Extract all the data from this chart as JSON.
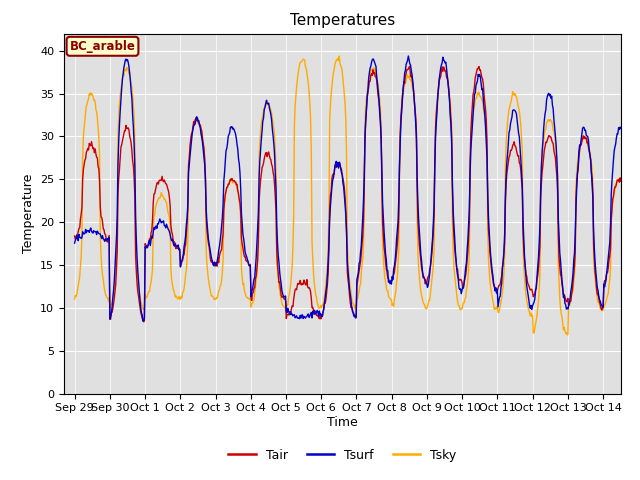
{
  "title": "Temperatures",
  "xlabel": "Time",
  "ylabel": "Temperature",
  "ylim": [
    0,
    42
  ],
  "yticks": [
    0,
    5,
    10,
    15,
    20,
    25,
    30,
    35,
    40
  ],
  "legend_label": "BC_arable",
  "line_labels": [
    "Tair",
    "Tsurf",
    "Tsky"
  ],
  "line_colors": [
    "#cc0000",
    "#0000cc",
    "#ffaa00"
  ],
  "background_color": "#e8e8e8",
  "plot_bg_color": "#e0e0e0",
  "title_fontsize": 11,
  "axis_label_fontsize": 9,
  "tick_label_fontsize": 8,
  "x_tick_labels": [
    "Sep 29",
    "Sep 30",
    "Oct 1",
    "Oct 2",
    "Oct 3",
    "Oct 4",
    "Oct 5",
    "Oct 6",
    "Oct 7",
    "Oct 8",
    "Oct 9",
    "Oct 10",
    "Oct 11",
    "Oct 12",
    "Oct 13",
    "Oct 14"
  ],
  "num_days": 15.5,
  "linewidth": 1.0,
  "figsize": [
    6.4,
    4.8
  ],
  "dpi": 100
}
